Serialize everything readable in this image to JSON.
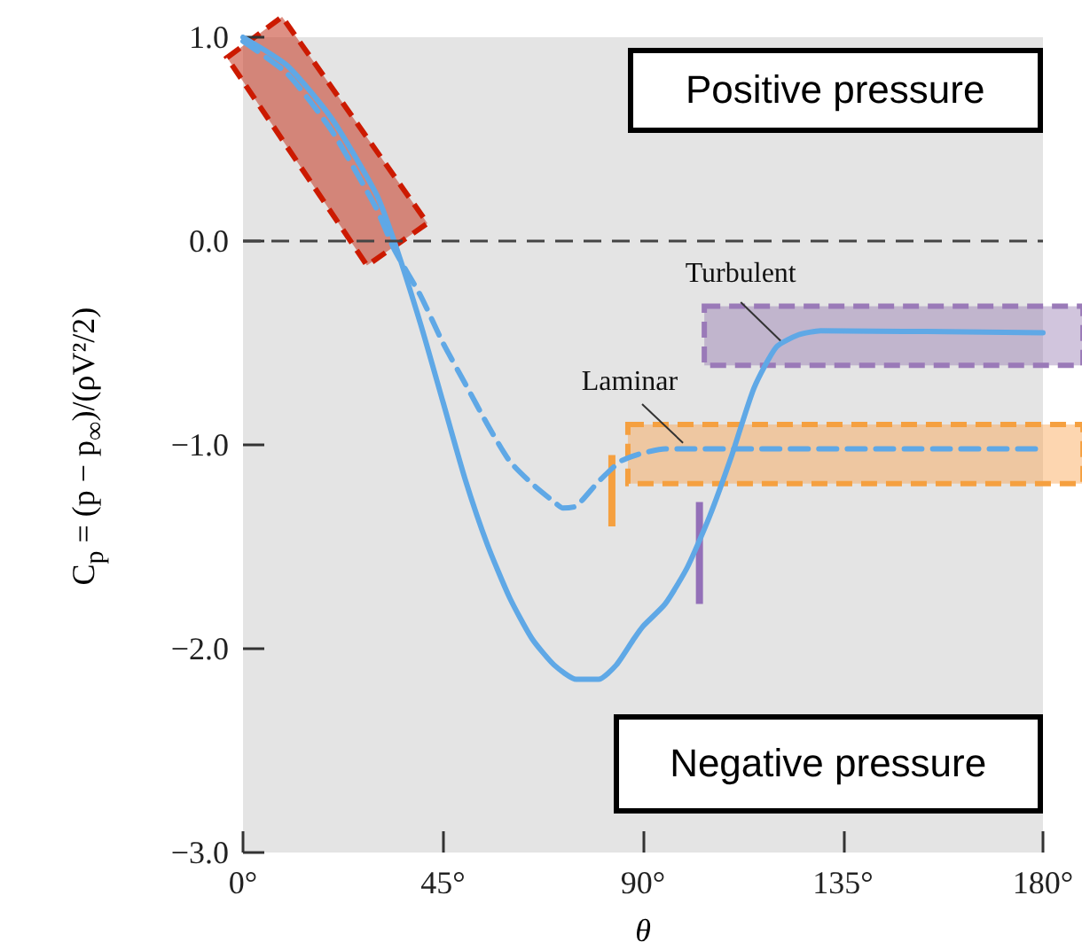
{
  "chart_data": {
    "type": "line",
    "xlabel": "θ",
    "ylabel": "C$_{p}$ = (p − p$_{∞}$)/(ρV²/2)",
    "annotations": [
      "Positive pressure",
      "Negative pressure"
    ],
    "xlim": [
      0,
      180
    ],
    "xticks": [
      {
        "value": 0,
        "label": "0°"
      },
      {
        "value": 45,
        "label": "45°"
      },
      {
        "value": 90,
        "label": "90°"
      },
      {
        "value": 135,
        "label": "135°"
      },
      {
        "value": 180,
        "label": "180°"
      }
    ],
    "ylim": [
      -3,
      1
    ],
    "yticks": [
      {
        "value": -3,
        "label": "−3.0"
      },
      {
        "value": -2,
        "label": "−2.0"
      },
      {
        "value": -1,
        "label": "−1.0"
      },
      {
        "value": 0,
        "label": "0.0"
      },
      {
        "value": 1,
        "label": "1.0"
      }
    ],
    "series": [
      {
        "name": "Turbulent",
        "color": "#5fa8e6",
        "line_style": "solid",
        "x": [
          0,
          10,
          20,
          30,
          34,
          40,
          45,
          50,
          55,
          60,
          65,
          70,
          75,
          80,
          84,
          88,
          90,
          95,
          100,
          105,
          110,
          115,
          120,
          125,
          130,
          180
        ],
        "values": [
          1.0,
          0.86,
          0.6,
          0.23,
          0.0,
          -0.41,
          -0.79,
          -1.17,
          -1.49,
          -1.75,
          -1.95,
          -2.08,
          -2.15,
          -2.15,
          -2.08,
          -1.95,
          -1.89,
          -1.78,
          -1.6,
          -1.35,
          -1.05,
          -0.72,
          -0.52,
          -0.46,
          -0.44,
          -0.45
        ]
      },
      {
        "name": "Laminar",
        "color": "#5fa8e6",
        "line_style": "dashed",
        "x": [
          0,
          10,
          20,
          30,
          34,
          40,
          45,
          50,
          55,
          60,
          65,
          70,
          72,
          75,
          80,
          85,
          90,
          95,
          100,
          180
        ],
        "values": [
          0.98,
          0.82,
          0.54,
          0.16,
          -0.04,
          -0.27,
          -0.5,
          -0.7,
          -0.9,
          -1.08,
          -1.19,
          -1.28,
          -1.31,
          -1.3,
          -1.18,
          -1.08,
          -1.04,
          -1.02,
          -1.02,
          -1.02
        ]
      }
    ],
    "ref_lines": [
      {
        "axis": "y",
        "value": 0,
        "color": "#444444",
        "line_style": "dashed"
      }
    ],
    "marker": "none",
    "grid": false,
    "legend": false
  }
}
